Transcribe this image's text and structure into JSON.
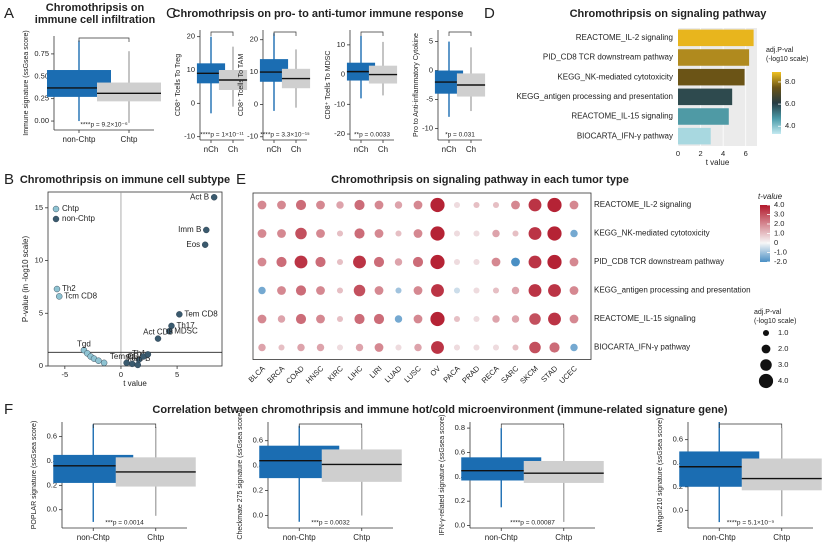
{
  "chart_data": [
    {
      "panel": "A",
      "type": "box",
      "title_lines": [
        "Chromothripsis on",
        "immune cell infiltration"
      ],
      "subplots": [
        {
          "ylabel": "Immune signature (ssGsea score)",
          "ylim": [
            -0.1,
            0.95
          ],
          "yticks": [
            {
              "value": 0,
              "label": "0.00"
            },
            {
              "value": 0.25,
              "label": "0.25"
            },
            {
              "value": 0.5,
              "label": "0.50"
            },
            {
              "value": 0.75,
              "label": "0.75"
            }
          ],
          "categories": [
            "non-Chtp",
            "Chtp"
          ],
          "colors": [
            "#1b6db2",
            "#cfcfcf"
          ],
          "boxes": [
            {
              "min": 0.0,
              "q1": 0.27,
              "median": 0.37,
              "q3": 0.57,
              "max": 0.9
            },
            {
              "min": -0.02,
              "q1": 0.22,
              "median": 0.31,
              "q3": 0.43,
              "max": 0.78
            }
          ],
          "annotation": "****p = 9.2×10⁻⁶"
        }
      ]
    },
    {
      "panel": "C",
      "type": "box",
      "title": "Chromothripsis on pro- to anti-tumor immune response",
      "subplots": [
        {
          "ylabel": "CD8⁺ Tcells To Treg",
          "ylim": [
            -11,
            22
          ],
          "yticks": [
            -10,
            0,
            10,
            20
          ],
          "categories": [
            "nCh",
            "Ch"
          ],
          "colors": [
            "#1b6db2",
            "#cfcfcf"
          ],
          "boxes": [
            {
              "min": -3,
              "q1": 6,
              "median": 9,
              "q3": 12,
              "max": 20
            },
            {
              "min": -1,
              "q1": 4,
              "median": 7,
              "q3": 10,
              "max": 17
            }
          ],
          "annotation": "****p = 1×10⁻¹¹"
        },
        {
          "ylabel": "CD8⁺ Tcells To TAM",
          "ylim": [
            -11,
            23
          ],
          "yticks": [
            -10,
            0,
            10,
            20
          ],
          "categories": [
            "nCh",
            "Ch"
          ],
          "colors": [
            "#1b6db2",
            "#cfcfcf"
          ],
          "boxes": [
            {
              "min": -2,
              "q1": 7,
              "median": 10,
              "q3": 14,
              "max": 22
            },
            {
              "min": -1,
              "q1": 5,
              "median": 8,
              "q3": 11,
              "max": 17
            }
          ],
          "annotation": "****p = 3.3×10⁻¹⁵"
        },
        {
          "ylabel": "CD8⁺ Tcells To MDSC",
          "ylim": [
            -22,
            15
          ],
          "yticks": [
            -20,
            -10,
            0,
            10
          ],
          "categories": [
            "nCh",
            "Ch"
          ],
          "colors": [
            "#1b6db2",
            "#cfcfcf"
          ],
          "boxes": [
            {
              "min": -8,
              "q1": -2,
              "median": 1,
              "q3": 4,
              "max": 13
            },
            {
              "min": -7,
              "q1": -3,
              "median": 0,
              "q3": 3,
              "max": 11
            }
          ],
          "annotation": "**p = 0.0033"
        },
        {
          "ylabel": "Pro to Anti-inflammatory Cytokine",
          "ylim": [
            -12,
            7
          ],
          "yticks": [
            5,
            0,
            -5,
            -10
          ],
          "categories": [
            "nCh",
            "Ch"
          ],
          "colors": [
            "#1b6db2",
            "#cfcfcf"
          ],
          "boxes": [
            {
              "min": -8,
              "q1": -4,
              "median": -2,
              "q3": 0,
              "max": 5
            },
            {
              "min": -7,
              "q1": -4.5,
              "median": -2.5,
              "q3": -0.5,
              "max": 4
            }
          ],
          "annotation": "*p = 0.031"
        }
      ]
    },
    {
      "panel": "D",
      "type": "hbar",
      "title": "Chromothripsis on signaling pathway",
      "categories": [
        "REACTOME_IL-2 signaling",
        "PID_CD8 TCR downstream pathway",
        "KEGG_NK-mediated cytotoxicity",
        "KEGG_antigen processing and presentation",
        "REACTOME_IL-15 signaling",
        "BIOCARTA_IFN-γ pathway"
      ],
      "values": [
        6.7,
        6.3,
        5.9,
        4.8,
        4.5,
        2.9
      ],
      "colors": [
        "#e8b51d",
        "#b08a1e",
        "#6b5416",
        "#2e4a4e",
        "#4f9aa5",
        "#a8d8e0"
      ],
      "xlim": [
        0,
        7
      ],
      "xticks": [
        0,
        2,
        4,
        6
      ],
      "xlabel": "t value",
      "colorbar": {
        "title_lines": [
          "adj.P-val",
          "(-log10 scale)"
        ],
        "lim": [
          3.3,
          8.9
        ],
        "colors": [
          "#c4eaf1",
          "#4a9aa8",
          "#263c44",
          "#6b5416",
          "#f0c020"
        ],
        "ticks": [
          {
            "value": 4,
            "label": "4.0"
          },
          {
            "value": 6,
            "label": "6.0"
          },
          {
            "value": 8,
            "label": "8.0"
          }
        ]
      }
    },
    {
      "panel": "B",
      "type": "scatter",
      "title": "Chromothripsis on immune cell subtype",
      "xlabel": "t value",
      "ylabel": "P-value (in -log10 scale)",
      "xlim": [
        -6.5,
        9
      ],
      "ylim": [
        0,
        16.5
      ],
      "xticks": [
        -5,
        0,
        5
      ],
      "yticks": [
        0,
        5,
        10,
        15
      ],
      "hline": 1.3,
      "vline": 0,
      "legend": "top-left",
      "series": [
        {
          "name": "Chtp",
          "color": "#8ec3d2",
          "x": [
            -5.7,
            -5.5,
            -3.3,
            -3.0,
            -2.7,
            -2.4,
            -2.0,
            -1.5
          ],
          "values": [
            7.3,
            6.6,
            1.5,
            1.2,
            0.9,
            0.7,
            0.5,
            0.3
          ],
          "labels": [
            "Th2",
            "Tcm CD8",
            "Tgd",
            null,
            null,
            null,
            null,
            null
          ]
        },
        {
          "name": "non-Chtp",
          "color": "#3a5a6e",
          "x": [
            8.3,
            7.6,
            7.5,
            5.2,
            4.5,
            4.3,
            3.3,
            1.6,
            1.0,
            1.5,
            0.5,
            2.0,
            2.4
          ],
          "values": [
            16.0,
            12.9,
            11.5,
            4.9,
            3.8,
            3.3,
            2.6,
            0.6,
            0.2,
            0.1,
            0.3,
            0.9,
            1.1
          ],
          "labels": [
            "Act B",
            "Imm B",
            "Eos",
            "Tem CD8",
            "Th17",
            "MDSC",
            "Act CD8",
            "Th1",
            "Tfh",
            "Mem B",
            "Tem CD4",
            null,
            null
          ]
        }
      ]
    },
    {
      "panel": "E",
      "type": "dot",
      "title": "Chromothripsis on signaling pathway in each tumor type",
      "categories": [
        "BLCA",
        "BRCA",
        "COAD",
        "HNSC",
        "KIRC",
        "LIHC",
        "LIRI",
        "LUAD",
        "LUSC",
        "OV",
        "PACA",
        "PRAD",
        "RECA",
        "SARC",
        "SKCM",
        "STAD",
        "UCEC"
      ],
      "series": [
        {
          "name": "REACTOME_IL-2 signaling",
          "values": [
            2.0,
            2.0,
            2.5,
            2.0,
            1.5,
            2.5,
            2.0,
            1.5,
            2.0,
            3.8,
            0.5,
            1.0,
            1.0,
            2.0,
            3.5,
            3.8,
            2.0
          ],
          "sizes": [
            2.0,
            2.0,
            2.5,
            2.0,
            1.5,
            2.5,
            2.0,
            1.5,
            2.0,
            4.0,
            1.0,
            1.0,
            1.0,
            2.0,
            3.5,
            4.0,
            2.0
          ]
        },
        {
          "name": "KEGG_NK-mediated cytotoxicity",
          "values": [
            2.0,
            2.0,
            3.0,
            2.0,
            1.0,
            2.5,
            2.0,
            1.0,
            2.0,
            3.8,
            0.5,
            0.5,
            1.5,
            1.0,
            3.5,
            3.8,
            -1.5
          ],
          "sizes": [
            2.0,
            2.0,
            3.0,
            2.0,
            1.0,
            2.5,
            2.0,
            1.0,
            2.0,
            4.0,
            1.0,
            1.0,
            1.5,
            1.0,
            3.5,
            4.0,
            1.5
          ]
        },
        {
          "name": "PID_CD8 TCR downstream pathway",
          "values": [
            2.0,
            2.5,
            3.5,
            2.5,
            1.0,
            3.5,
            2.5,
            1.5,
            2.5,
            3.8,
            0.5,
            0.5,
            2.0,
            -2.0,
            3.5,
            3.8,
            2.0
          ],
          "sizes": [
            2.0,
            2.5,
            3.5,
            2.5,
            1.0,
            3.5,
            2.5,
            1.5,
            2.5,
            4.0,
            1.0,
            1.0,
            2.0,
            2.0,
            3.5,
            4.0,
            2.0
          ]
        },
        {
          "name": "KEGG_antigen processing and presentation",
          "values": [
            -1.5,
            2.0,
            2.5,
            2.0,
            1.0,
            3.0,
            2.0,
            -1.0,
            2.0,
            3.5,
            -0.5,
            0.5,
            1.0,
            1.5,
            3.5,
            3.5,
            2.0
          ],
          "sizes": [
            1.5,
            2.0,
            2.5,
            2.0,
            1.0,
            3.0,
            2.0,
            1.0,
            2.0,
            3.5,
            1.0,
            1.0,
            1.0,
            1.5,
            3.5,
            3.5,
            2.0
          ]
        },
        {
          "name": "REACTOME_IL-15 signaling",
          "values": [
            2.0,
            1.5,
            2.5,
            2.0,
            1.0,
            2.5,
            2.5,
            -1.5,
            2.0,
            3.8,
            1.0,
            0.5,
            1.5,
            1.5,
            3.0,
            3.5,
            2.0
          ],
          "sizes": [
            2.0,
            1.5,
            2.5,
            2.0,
            1.0,
            2.5,
            2.5,
            1.5,
            2.0,
            4.0,
            1.0,
            1.0,
            1.5,
            1.5,
            3.0,
            3.5,
            2.0
          ]
        },
        {
          "name": "BIOCARTA_IFN-γ pathway",
          "values": [
            1.5,
            1.0,
            1.5,
            1.5,
            0.5,
            1.5,
            2.0,
            0.5,
            1.5,
            3.5,
            0.5,
            0.5,
            0.5,
            1.0,
            3.0,
            2.5,
            -1.5
          ],
          "sizes": [
            1.5,
            1.0,
            1.5,
            1.5,
            1.0,
            1.5,
            2.0,
            1.0,
            1.5,
            3.5,
            1.0,
            1.0,
            1.0,
            1.0,
            3.0,
            2.5,
            1.5
          ]
        }
      ],
      "color_legend": {
        "title": "t-value",
        "lim": [
          -2,
          4
        ],
        "stops": [
          {
            "value": -2,
            "color": "#4a8fc4"
          },
          {
            "value": 0,
            "color": "#f7f7f7"
          },
          {
            "value": 4,
            "color": "#b2182b"
          }
        ],
        "ticks": [
          {
            "value": 4,
            "label": "4.0"
          },
          {
            "value": 3,
            "label": "3.0"
          },
          {
            "value": 2,
            "label": "2.0"
          },
          {
            "value": 1,
            "label": "1.0"
          },
          0,
          {
            "value": -1,
            "label": "-1.0"
          },
          {
            "value": -2,
            "label": "-2.0"
          }
        ]
      },
      "size_legend": {
        "title_lines": [
          "adj.P-val",
          "(-log10 scale)"
        ],
        "ticks": [
          {
            "value": 1,
            "label": "1.0"
          },
          {
            "value": 2,
            "label": "2.0"
          },
          {
            "value": 3,
            "label": "3.0"
          },
          {
            "value": 4,
            "label": "4.0"
          }
        ]
      }
    },
    {
      "panel": "F",
      "type": "box",
      "title": "Correlation between chromothripsis and immune hot/cold microenvironment (immune-related signature gene)",
      "subplots": [
        {
          "ylabel": "POPLAR signature (ssGsea score)",
          "ylim": [
            -0.15,
            0.72
          ],
          "yticks": [
            {
              "value": 0,
              "label": "0.0"
            },
            {
              "value": 0.2,
              "label": "0.2"
            },
            {
              "value": 0.4,
              "label": "0.4"
            },
            {
              "value": 0.6,
              "label": "0.6"
            }
          ],
          "categories": [
            "non-Chtp",
            "Chtp"
          ],
          "colors": [
            "#1b6db2",
            "#cfcfcf"
          ],
          "boxes": [
            {
              "min": -0.1,
              "q1": 0.22,
              "median": 0.36,
              "q3": 0.45,
              "max": 0.7
            },
            {
              "min": -0.05,
              "q1": 0.19,
              "median": 0.31,
              "q3": 0.43,
              "max": 0.68
            }
          ],
          "annotation": "***p = 0.0014"
        },
        {
          "ylabel": "Checkmate 275 signature (ssGsea score)",
          "ylim": [
            -0.1,
            0.75
          ],
          "yticks": [
            {
              "value": 0,
              "label": "0.0"
            },
            {
              "value": 0.2,
              "label": "0.2"
            },
            {
              "value": 0.4,
              "label": "0.4"
            },
            {
              "value": 0.6,
              "label": "0.6"
            }
          ],
          "categories": [
            "non-Chtp",
            "Chtp"
          ],
          "colors": [
            "#1b6db2",
            "#cfcfcf"
          ],
          "boxes": [
            {
              "min": -0.05,
              "q1": 0.3,
              "median": 0.44,
              "q3": 0.56,
              "max": 0.72
            },
            {
              "min": 0.0,
              "q1": 0.27,
              "median": 0.41,
              "q3": 0.53,
              "max": 0.7
            }
          ],
          "annotation": "***p = 0.0032"
        },
        {
          "ylabel": "IFN-γ-related signature (ssGsea score)",
          "ylim": [
            -0.02,
            0.85
          ],
          "yticks": [
            {
              "value": 0,
              "label": "0.0"
            },
            {
              "value": 0.2,
              "label": "0.2"
            },
            {
              "value": 0.4,
              "label": "0.4"
            },
            {
              "value": 0.6,
              "label": "0.6"
            },
            {
              "value": 0.8,
              "label": "0.8"
            }
          ],
          "categories": [
            "non-Chtp",
            "Chtp"
          ],
          "colors": [
            "#1b6db2",
            "#cfcfcf"
          ],
          "boxes": [
            {
              "min": 0.15,
              "q1": 0.37,
              "median": 0.45,
              "q3": 0.56,
              "max": 0.8
            },
            {
              "min": 0.03,
              "q1": 0.35,
              "median": 0.43,
              "q3": 0.53,
              "max": 0.8
            }
          ],
          "annotation": "****p = 0.00087"
        },
        {
          "ylabel": "IMvigor210 signature (ssGsea score)",
          "ylim": [
            -0.15,
            0.75
          ],
          "yticks": [
            {
              "value": 0,
              "label": "0.0"
            },
            {
              "value": 0.2,
              "label": "0.2"
            },
            {
              "value": 0.4,
              "label": "0.4"
            },
            {
              "value": 0.6,
              "label": "0.6"
            }
          ],
          "categories": [
            "non-Chtp",
            "Chtp"
          ],
          "colors": [
            "#1b6db2",
            "#cfcfcf"
          ],
          "boxes": [
            {
              "min": -0.1,
              "q1": 0.2,
              "median": 0.37,
              "q3": 0.5,
              "max": 0.75
            },
            {
              "min": -0.05,
              "q1": 0.17,
              "median": 0.27,
              "q3": 0.44,
              "max": 0.7
            }
          ],
          "annotation": "****p = 5.1×10⁻⁹"
        }
      ]
    }
  ]
}
